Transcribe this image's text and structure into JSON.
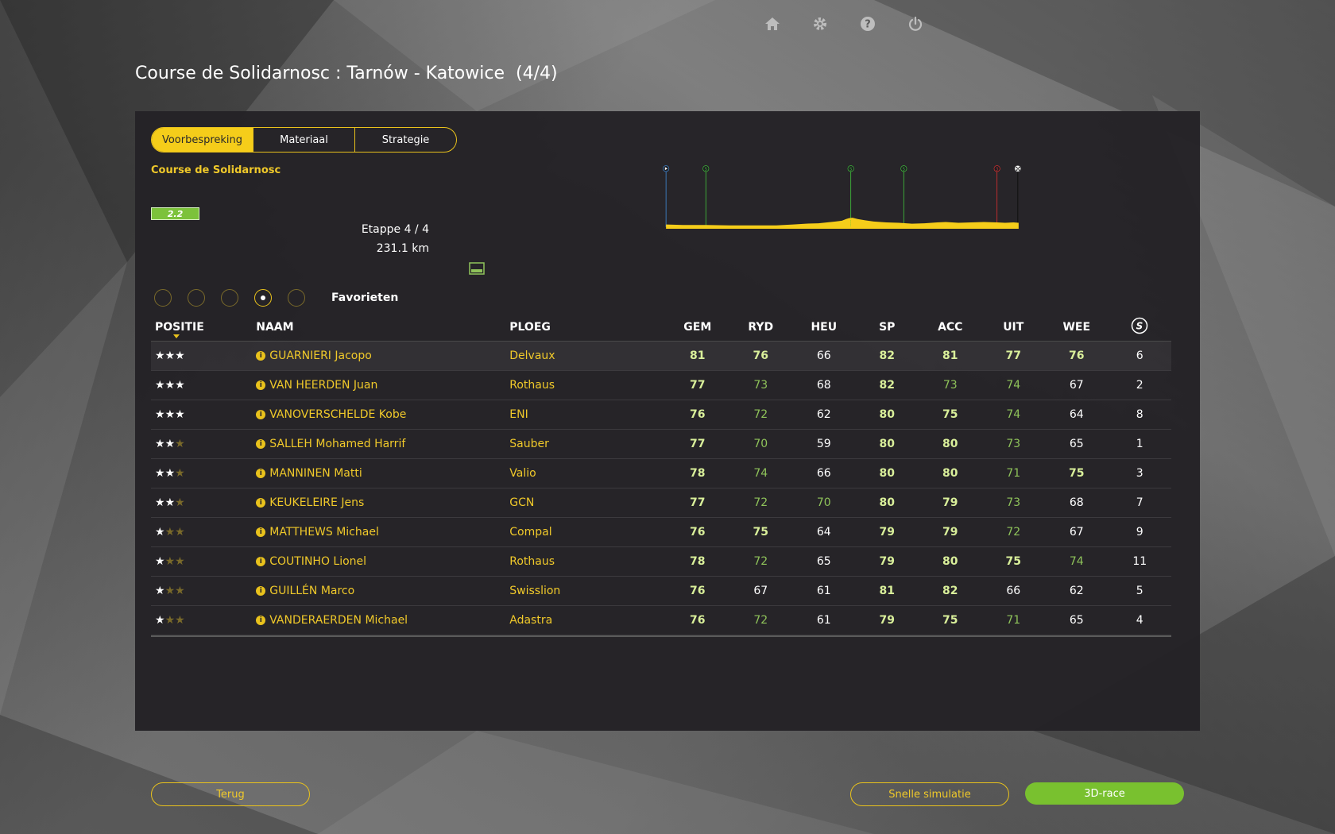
{
  "nav": {
    "home": "home-icon",
    "settings": "gear-icon",
    "help": "help-icon",
    "power": "power-icon"
  },
  "page_title": "Course de Solidarnosc : Tarnów - Katowice  (4/4)",
  "tabs": [
    {
      "label": "Voorbespreking"
    },
    {
      "label": "Materiaal"
    },
    {
      "label": "Strategie"
    }
  ],
  "race": {
    "name": "Course de Solidarnosc",
    "class": "2.2",
    "stage": "Etappe 4 / 4",
    "distance": "231.1 km"
  },
  "filters": {
    "label": "Favorieten",
    "selected_index": 3,
    "count": 5
  },
  "table": {
    "headers": {
      "pos": "POSITIE",
      "name": "NAAM",
      "team": "PLOEG",
      "gem": "GEM",
      "ryd": "RYD",
      "heu": "HEU",
      "sp": "SP",
      "acc": "ACC",
      "uit": "UIT",
      "wee": "WEE"
    },
    "rows": [
      {
        "stars": 3,
        "name": "GUARNIERI Jacopo",
        "team": "Delvaux",
        "gem": "81",
        "ryd": "76",
        "heu": "66",
        "sp": "82",
        "acc": "81",
        "uit": "77",
        "wee": "76",
        "s": "6"
      },
      {
        "stars": 3,
        "name": "VAN HEERDEN Juan",
        "team": "Rothaus",
        "gem": "77",
        "ryd": "73",
        "heu": "68",
        "sp": "82",
        "acc": "73",
        "uit": "74",
        "wee": "67",
        "s": "2"
      },
      {
        "stars": 3,
        "name": "VANOVERSCHELDE Kobe",
        "team": "ENI",
        "gem": "76",
        "ryd": "72",
        "heu": "62",
        "sp": "80",
        "acc": "75",
        "uit": "74",
        "wee": "64",
        "s": "8"
      },
      {
        "stars": 2,
        "name": "SALLEH Mohamed Harrif",
        "team": "Sauber",
        "gem": "77",
        "ryd": "70",
        "heu": "59",
        "sp": "80",
        "acc": "80",
        "uit": "73",
        "wee": "65",
        "s": "1"
      },
      {
        "stars": 2,
        "name": "MANNINEN Matti",
        "team": "Valio",
        "gem": "78",
        "ryd": "74",
        "heu": "66",
        "sp": "80",
        "acc": "80",
        "uit": "71",
        "wee": "75",
        "s": "3"
      },
      {
        "stars": 2,
        "name": "KEUKELEIRE Jens",
        "team": "GCN",
        "gem": "77",
        "ryd": "72",
        "heu": "70",
        "sp": "80",
        "acc": "79",
        "uit": "73",
        "wee": "68",
        "s": "7"
      },
      {
        "stars": 1,
        "name": "MATTHEWS Michael",
        "team": "Compal",
        "gem": "76",
        "ryd": "75",
        "heu": "64",
        "sp": "79",
        "acc": "79",
        "uit": "72",
        "wee": "67",
        "s": "9"
      },
      {
        "stars": 1,
        "name": "COUTINHO Lionel",
        "team": "Rothaus",
        "gem": "78",
        "ryd": "72",
        "heu": "65",
        "sp": "79",
        "acc": "80",
        "uit": "75",
        "wee": "74",
        "s": "11"
      },
      {
        "stars": 1,
        "name": "GUILLÉN Marco",
        "team": "Swisslion",
        "gem": "76",
        "ryd": "67",
        "heu": "61",
        "sp": "81",
        "acc": "82",
        "uit": "66",
        "wee": "62",
        "s": "5"
      },
      {
        "stars": 1,
        "name": "VANDERAERDEN Michael",
        "team": "Adastra",
        "gem": "76",
        "ryd": "72",
        "heu": "61",
        "sp": "79",
        "acc": "75",
        "uit": "71",
        "wee": "65",
        "s": "4"
      }
    ]
  },
  "profile": {
    "markers": [
      {
        "type": "start",
        "label": ""
      },
      {
        "type": "sprint",
        "label": "S"
      },
      {
        "type": "sprint",
        "label": "S"
      },
      {
        "type": "sprint",
        "label": "S"
      },
      {
        "type": "climb",
        "label": "3"
      },
      {
        "type": "finish",
        "label": ""
      }
    ]
  },
  "buttons": {
    "back": "Terug",
    "quick_sim": "Snelle simulatie",
    "race_3d": "3D-race"
  },
  "colors": {
    "accent": "#f5cd1a",
    "green": "#79c12f",
    "panel": "#242226"
  }
}
